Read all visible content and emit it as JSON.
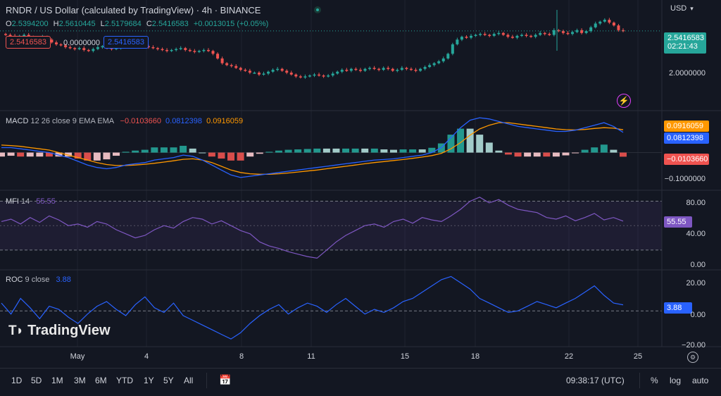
{
  "header": {
    "title": "RNDR / US Dollar (calculated by TradingView) · 4h · BINANCE",
    "ohlc": [
      {
        "k": "O",
        "v": "2.5394200"
      },
      {
        "k": "H",
        "v": "2.5610445"
      },
      {
        "k": "L",
        "v": "2.5179684"
      },
      {
        "k": "C",
        "v": "2.5416583"
      },
      {
        "k": "",
        "v": "+0.0013015 (+0.05%)"
      }
    ],
    "sell_price": "2.5416583",
    "spread": "0.0000000",
    "buy_price": "2.5416583"
  },
  "currency": "USD",
  "price_tag": {
    "price": "2.5416583",
    "countdown": "02:21:43"
  },
  "price_axis": [
    "2.0000000"
  ],
  "macd": {
    "label": "MACD",
    "params": "12 26 close 9 EMA EMA",
    "hist_value": "−0.0103660",
    "macd_value": "0.0812398",
    "signal_value": "0.0916059",
    "axis_ticks": [
      "−0.1000000"
    ]
  },
  "mfi": {
    "label": "MFI",
    "params": "14",
    "value": "55.55",
    "axis_ticks": [
      "80.00",
      "40.00",
      "0.00"
    ]
  },
  "roc": {
    "label": "ROC",
    "params": "9 close",
    "value": "3.88",
    "axis_ticks": [
      "20.00",
      "0.00",
      "−20.00"
    ]
  },
  "x_ticks": [
    "May",
    "4",
    "8",
    "11",
    "15",
    "18",
    "22",
    "25"
  ],
  "toolbar": {
    "ranges": [
      "1D",
      "5D",
      "1M",
      "3M",
      "6M",
      "YTD",
      "1Y",
      "5Y",
      "All"
    ],
    "time": "09:38:17 (UTC)",
    "percent": "%",
    "log": "log",
    "auto": "auto"
  },
  "watermark": "TradingView",
  "colors": {
    "up": "#26a69a",
    "down": "#ef5350",
    "macd": "#2962ff",
    "signal": "#ff9800",
    "mfi": "#7e57c2",
    "roc": "#2962ff",
    "bg": "#131722"
  },
  "chart_data": [
    {
      "type": "candlestick",
      "title": "RNDR / US Dollar · 4h · BINANCE",
      "x_ticks": [
        "May",
        "4",
        "8",
        "11",
        "15",
        "18",
        "22",
        "25"
      ],
      "ylim": [
        1.75,
        2.75
      ],
      "closes": [
        2.5,
        2.49,
        2.48,
        2.49,
        2.5,
        2.48,
        2.46,
        2.47,
        2.48,
        2.45,
        2.42,
        2.4,
        2.39,
        2.37,
        2.36,
        2.35,
        2.36,
        2.34,
        2.33,
        2.35,
        2.37,
        2.38,
        2.36,
        2.35,
        2.36,
        2.38,
        2.4,
        2.41,
        2.4,
        2.39,
        2.38,
        2.37,
        2.36,
        2.35,
        2.34,
        2.33,
        2.34,
        2.35,
        2.36,
        2.34,
        2.33,
        2.32,
        2.33,
        2.34,
        2.33,
        2.3,
        2.25,
        2.2,
        2.18,
        2.17,
        2.15,
        2.13,
        2.12,
        2.1,
        2.1,
        2.08,
        2.09,
        2.11,
        2.13,
        2.14,
        2.12,
        2.1,
        2.08,
        2.06,
        2.05,
        2.06,
        2.07,
        2.08,
        2.07,
        2.06,
        2.07,
        2.09,
        2.11,
        2.13,
        2.12,
        2.14,
        2.13,
        2.12,
        2.14,
        2.15,
        2.14,
        2.13,
        2.15,
        2.14,
        2.12,
        2.13,
        2.15,
        2.14,
        2.13,
        2.12,
        2.14,
        2.16,
        2.18,
        2.2,
        2.22,
        2.25,
        2.3,
        2.4,
        2.45,
        2.48,
        2.47,
        2.49,
        2.5,
        2.51,
        2.5,
        2.49,
        2.51,
        2.52,
        2.5,
        2.48,
        2.47,
        2.49,
        2.5,
        2.49,
        2.48,
        2.5,
        2.52,
        2.51,
        2.5,
        2.55,
        2.54,
        2.52,
        2.51,
        2.53,
        2.55,
        2.52,
        2.54,
        2.58,
        2.62,
        2.64,
        2.66,
        2.63,
        2.6,
        2.55,
        2.54
      ],
      "last": 2.5416583
    },
    {
      "type": "line",
      "title": "MACD 12 26 close 9 EMA EMA",
      "series": [
        {
          "name": "MACD",
          "values": [
            0.02,
            0.02,
            0.015,
            0.01,
            0.005,
            0.0,
            -0.01,
            -0.02,
            -0.035,
            -0.05,
            -0.06,
            -0.065,
            -0.06,
            -0.05,
            -0.045,
            -0.04,
            -0.03,
            -0.025,
            -0.02,
            -0.01,
            -0.015,
            -0.03,
            -0.05,
            -0.07,
            -0.09,
            -0.1,
            -0.095,
            -0.09,
            -0.085,
            -0.08,
            -0.075,
            -0.07,
            -0.065,
            -0.06,
            -0.055,
            -0.05,
            -0.045,
            -0.04,
            -0.035,
            -0.03,
            -0.028,
            -0.025,
            -0.02,
            -0.015,
            -0.01,
            0.0,
            0.02,
            0.06,
            0.1,
            0.13,
            0.14,
            0.135,
            0.125,
            0.115,
            0.105,
            0.1,
            0.095,
            0.09,
            0.085,
            0.085,
            0.09,
            0.1,
            0.11,
            0.12,
            0.105,
            0.0812398
          ]
        },
        {
          "name": "Signal",
          "values": [
            0.03,
            0.028,
            0.025,
            0.02,
            0.015,
            0.01,
            0.0,
            -0.01,
            -0.02,
            -0.03,
            -0.04,
            -0.048,
            -0.052,
            -0.052,
            -0.05,
            -0.047,
            -0.043,
            -0.038,
            -0.033,
            -0.027,
            -0.025,
            -0.03,
            -0.04,
            -0.055,
            -0.07,
            -0.08,
            -0.085,
            -0.087,
            -0.087,
            -0.085,
            -0.082,
            -0.078,
            -0.074,
            -0.07,
            -0.065,
            -0.06,
            -0.055,
            -0.05,
            -0.045,
            -0.04,
            -0.036,
            -0.032,
            -0.028,
            -0.023,
            -0.018,
            -0.012,
            -0.003,
            0.015,
            0.04,
            0.07,
            0.095,
            0.11,
            0.12,
            0.12,
            0.115,
            0.11,
            0.105,
            0.1,
            0.095,
            0.092,
            0.091,
            0.093,
            0.097,
            0.1,
            0.098,
            0.0916059
          ]
        }
      ],
      "ylim": [
        -0.14,
        0.16
      ]
    },
    {
      "type": "line",
      "title": "MFI 14",
      "series": [
        {
          "name": "MFI",
          "values": [
            55,
            58,
            52,
            60,
            54,
            62,
            57,
            50,
            52,
            48,
            55,
            52,
            45,
            40,
            35,
            38,
            45,
            50,
            47,
            55,
            60,
            58,
            52,
            56,
            50,
            44,
            40,
            30,
            25,
            22,
            18,
            15,
            12,
            10,
            20,
            30,
            38,
            44,
            50,
            52,
            48,
            55,
            58,
            53,
            60,
            57,
            55,
            62,
            70,
            80,
            85,
            78,
            82,
            75,
            70,
            68,
            66,
            60,
            58,
            62,
            56,
            60,
            65,
            57,
            60,
            55.55
          ]
        }
      ],
      "ylim": [
        0,
        90
      ],
      "bands": [
        20,
        80
      ]
    },
    {
      "type": "line",
      "title": "ROC 9 close",
      "series": [
        {
          "name": "ROC",
          "values": [
            5,
            -2,
            8,
            2,
            -5,
            3,
            1,
            -4,
            -8,
            -2,
            3,
            6,
            1,
            -3,
            4,
            9,
            2,
            -1,
            5,
            -3,
            -6,
            -9,
            -12,
            -15,
            -18,
            -14,
            -8,
            -3,
            1,
            4,
            -2,
            2,
            5,
            3,
            -1,
            4,
            8,
            3,
            -2,
            1,
            -1,
            2,
            6,
            8,
            12,
            16,
            20,
            22,
            18,
            14,
            8,
            5,
            2,
            -1,
            0,
            3,
            6,
            4,
            2,
            5,
            8,
            12,
            16,
            10,
            5,
            3.88
          ]
        }
      ],
      "ylim": [
        -22,
        24
      ]
    }
  ]
}
